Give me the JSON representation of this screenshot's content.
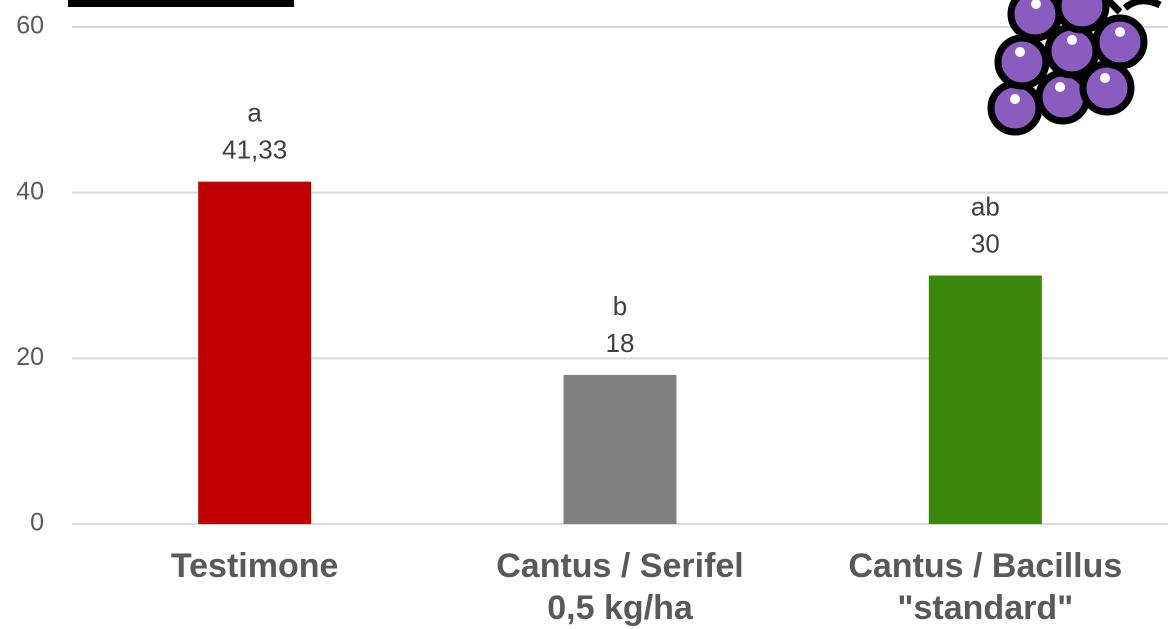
{
  "chart_data": {
    "type": "bar",
    "categories": [
      [
        "Testimone"
      ],
      [
        "Cantus / Serifel",
        "0,5 kg/ha"
      ],
      [
        "Cantus / Bacillus",
        "\"standard\""
      ]
    ],
    "values": [
      41.33,
      18,
      30
    ],
    "value_labels": [
      "41,33",
      "18",
      "30"
    ],
    "significance_letters": [
      "a",
      "b",
      "ab"
    ],
    "colors": [
      "#c00000",
      "#808080",
      "#3a870c"
    ],
    "ylim": [
      0,
      60
    ],
    "yticks": [
      0,
      20,
      40,
      60
    ],
    "grid": true
  }
}
